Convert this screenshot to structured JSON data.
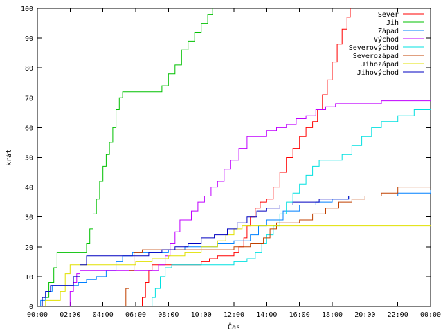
{
  "chart_data": {
    "type": "line",
    "xlabel": "Čas",
    "ylabel": "krát",
    "xlim": [
      0,
      24
    ],
    "ylim": [
      0,
      100
    ],
    "x_ticks": [
      {
        "value": 0,
        "label": "00:00"
      },
      {
        "value": 2,
        "label": "02:00"
      },
      {
        "value": 4,
        "label": "04:00"
      },
      {
        "value": 6,
        "label": "06:00"
      },
      {
        "value": 8,
        "label": "08:00"
      },
      {
        "value": 10,
        "label": "10:00"
      },
      {
        "value": 12,
        "label": "12:00"
      },
      {
        "value": 14,
        "label": "14:00"
      },
      {
        "value": 16,
        "label": "16:00"
      },
      {
        "value": 18,
        "label": "18:00"
      },
      {
        "value": 20,
        "label": "20:00"
      },
      {
        "value": 22,
        "label": "22:00"
      },
      {
        "value": 24,
        "label": "00:00"
      }
    ],
    "y_ticks": [
      0,
      10,
      20,
      30,
      40,
      50,
      60,
      70,
      80,
      90,
      100
    ],
    "grid": false,
    "legend_position": "top-right",
    "series": [
      {
        "name": "Sever",
        "color": "#ff0000",
        "points": [
          [
            6.2,
            0
          ],
          [
            6.4,
            3
          ],
          [
            6.6,
            8
          ],
          [
            6.8,
            12
          ],
          [
            7.0,
            14
          ],
          [
            7.5,
            14
          ],
          [
            8.0,
            14
          ],
          [
            8.5,
            14
          ],
          [
            9.0,
            14
          ],
          [
            9.5,
            14
          ],
          [
            10.0,
            15
          ],
          [
            10.5,
            16
          ],
          [
            11.0,
            17
          ],
          [
            11.5,
            17
          ],
          [
            12.0,
            18
          ],
          [
            12.3,
            20
          ],
          [
            12.6,
            23
          ],
          [
            12.8,
            27
          ],
          [
            13.0,
            30
          ],
          [
            13.3,
            33
          ],
          [
            13.6,
            35
          ],
          [
            14.0,
            36
          ],
          [
            14.4,
            40
          ],
          [
            14.8,
            45
          ],
          [
            15.2,
            50
          ],
          [
            15.6,
            53
          ],
          [
            16.0,
            57
          ],
          [
            16.4,
            60
          ],
          [
            16.8,
            62
          ],
          [
            17.1,
            66
          ],
          [
            17.4,
            71
          ],
          [
            17.7,
            76
          ],
          [
            18.0,
            82
          ],
          [
            18.3,
            88
          ],
          [
            18.6,
            93
          ],
          [
            18.9,
            97
          ],
          [
            19.1,
            100
          ]
        ]
      },
      {
        "name": "Jih",
        "color": "#00c000",
        "points": [
          [
            0.1,
            0
          ],
          [
            0.4,
            3
          ],
          [
            0.7,
            8
          ],
          [
            1.0,
            13
          ],
          [
            1.2,
            18
          ],
          [
            2.0,
            18
          ],
          [
            2.8,
            18
          ],
          [
            3.0,
            21
          ],
          [
            3.2,
            26
          ],
          [
            3.4,
            31
          ],
          [
            3.6,
            36
          ],
          [
            3.8,
            42
          ],
          [
            4.0,
            47
          ],
          [
            4.2,
            51
          ],
          [
            4.4,
            55
          ],
          [
            4.6,
            60
          ],
          [
            4.8,
            66
          ],
          [
            5.0,
            70
          ],
          [
            5.2,
            72
          ],
          [
            6.0,
            72
          ],
          [
            7.2,
            72
          ],
          [
            7.6,
            74
          ],
          [
            8.0,
            78
          ],
          [
            8.4,
            81
          ],
          [
            8.8,
            86
          ],
          [
            9.2,
            89
          ],
          [
            9.6,
            92
          ],
          [
            10.0,
            95
          ],
          [
            10.4,
            98
          ],
          [
            10.7,
            100
          ]
        ]
      },
      {
        "name": "Západ",
        "color": "#0080ff",
        "points": [
          [
            0.0,
            0
          ],
          [
            0.2,
            2
          ],
          [
            0.5,
            5
          ],
          [
            0.9,
            7
          ],
          [
            1.4,
            7
          ],
          [
            2.0,
            7
          ],
          [
            2.5,
            8
          ],
          [
            3.0,
            9
          ],
          [
            3.6,
            10
          ],
          [
            4.2,
            12
          ],
          [
            4.8,
            15
          ],
          [
            5.2,
            17
          ],
          [
            5.8,
            18
          ],
          [
            7.0,
            18
          ],
          [
            8.0,
            19
          ],
          [
            9.0,
            20
          ],
          [
            10.0,
            20
          ],
          [
            11.0,
            21
          ],
          [
            12.0,
            22
          ],
          [
            13.0,
            24
          ],
          [
            13.5,
            27
          ],
          [
            14.0,
            29
          ],
          [
            15.0,
            32
          ],
          [
            16.0,
            34
          ],
          [
            17.0,
            35
          ],
          [
            18.0,
            36
          ],
          [
            19.0,
            37
          ],
          [
            20.0,
            37
          ],
          [
            22.0,
            38
          ],
          [
            24.0,
            39
          ]
        ]
      },
      {
        "name": "Východ",
        "color": "#c000ff",
        "points": [
          [
            1.8,
            0
          ],
          [
            2.0,
            5
          ],
          [
            2.2,
            8
          ],
          [
            2.4,
            11
          ],
          [
            2.6,
            12
          ],
          [
            4.0,
            12
          ],
          [
            5.0,
            12
          ],
          [
            5.8,
            12
          ],
          [
            6.5,
            12
          ],
          [
            7.0,
            12
          ],
          [
            7.4,
            14
          ],
          [
            7.8,
            17
          ],
          [
            8.1,
            21
          ],
          [
            8.4,
            25
          ],
          [
            8.7,
            29
          ],
          [
            9.0,
            29
          ],
          [
            9.4,
            32
          ],
          [
            9.8,
            35
          ],
          [
            10.2,
            37
          ],
          [
            10.6,
            40
          ],
          [
            11.0,
            42
          ],
          [
            11.4,
            46
          ],
          [
            11.8,
            49
          ],
          [
            12.3,
            53
          ],
          [
            12.8,
            57
          ],
          [
            13.4,
            57
          ],
          [
            14.0,
            59
          ],
          [
            14.6,
            60
          ],
          [
            15.2,
            61
          ],
          [
            15.8,
            63
          ],
          [
            16.4,
            64
          ],
          [
            17.0,
            66
          ],
          [
            17.6,
            67
          ],
          [
            18.2,
            68
          ],
          [
            19.0,
            68
          ],
          [
            20.0,
            68
          ],
          [
            21.0,
            69
          ],
          [
            22.0,
            69
          ],
          [
            24.0,
            69
          ]
        ]
      },
      {
        "name": "Severovýchod",
        "color": "#00e0e0",
        "points": [
          [
            6.8,
            0
          ],
          [
            7.0,
            3
          ],
          [
            7.2,
            6
          ],
          [
            7.5,
            10
          ],
          [
            7.8,
            13
          ],
          [
            8.2,
            14
          ],
          [
            9.0,
            14
          ],
          [
            10.0,
            14
          ],
          [
            11.0,
            14
          ],
          [
            12.0,
            15
          ],
          [
            12.8,
            16
          ],
          [
            13.3,
            18
          ],
          [
            13.7,
            21
          ],
          [
            14.0,
            24
          ],
          [
            14.4,
            27
          ],
          [
            14.8,
            31
          ],
          [
            15.2,
            35
          ],
          [
            15.6,
            38
          ],
          [
            16.0,
            41
          ],
          [
            16.4,
            44
          ],
          [
            16.8,
            47
          ],
          [
            17.2,
            49
          ],
          [
            18.0,
            49
          ],
          [
            18.6,
            51
          ],
          [
            19.2,
            54
          ],
          [
            19.8,
            57
          ],
          [
            20.4,
            60
          ],
          [
            21.0,
            62
          ],
          [
            22.0,
            64
          ],
          [
            23.0,
            66
          ],
          [
            24.0,
            66
          ]
        ]
      },
      {
        "name": "Severozápad",
        "color": "#c04000",
        "points": [
          [
            5.2,
            0
          ],
          [
            5.4,
            6
          ],
          [
            5.6,
            12
          ],
          [
            5.9,
            18
          ],
          [
            6.4,
            19
          ],
          [
            7.0,
            19
          ],
          [
            8.0,
            19
          ],
          [
            9.0,
            19
          ],
          [
            10.0,
            19
          ],
          [
            11.0,
            19
          ],
          [
            12.0,
            20
          ],
          [
            13.0,
            21
          ],
          [
            13.8,
            23
          ],
          [
            14.2,
            26
          ],
          [
            14.6,
            28
          ],
          [
            15.4,
            28
          ],
          [
            16.0,
            29
          ],
          [
            16.8,
            31
          ],
          [
            17.6,
            33
          ],
          [
            18.4,
            35
          ],
          [
            19.2,
            36
          ],
          [
            20.0,
            37
          ],
          [
            21.0,
            38
          ],
          [
            22.0,
            40
          ],
          [
            24.0,
            40
          ]
        ]
      },
      {
        "name": "Jihozápad",
        "color": "#e0e000",
        "points": [
          [
            0.3,
            0
          ],
          [
            0.5,
            2
          ],
          [
            1.0,
            2
          ],
          [
            1.4,
            5
          ],
          [
            1.7,
            11
          ],
          [
            2.0,
            14
          ],
          [
            3.0,
            14
          ],
          [
            4.0,
            14
          ],
          [
            5.0,
            14
          ],
          [
            6.0,
            15
          ],
          [
            7.0,
            16
          ],
          [
            8.0,
            17
          ],
          [
            9.0,
            18
          ],
          [
            10.0,
            20
          ],
          [
            11.0,
            22
          ],
          [
            11.5,
            24
          ],
          [
            12.0,
            26
          ],
          [
            12.5,
            27
          ],
          [
            14.0,
            27
          ],
          [
            16.0,
            27
          ],
          [
            18.0,
            27
          ],
          [
            20.0,
            27
          ],
          [
            22.0,
            27
          ],
          [
            24.0,
            27
          ]
        ]
      },
      {
        "name": "Jihovýchod",
        "color": "#0000c0",
        "points": [
          [
            0.1,
            0
          ],
          [
            0.3,
            3
          ],
          [
            0.5,
            5
          ],
          [
            0.8,
            7
          ],
          [
            1.2,
            7
          ],
          [
            1.8,
            7
          ],
          [
            2.2,
            10
          ],
          [
            2.6,
            14
          ],
          [
            3.0,
            17
          ],
          [
            4.0,
            17
          ],
          [
            5.0,
            17
          ],
          [
            6.0,
            17
          ],
          [
            6.8,
            18
          ],
          [
            7.6,
            19
          ],
          [
            8.4,
            20
          ],
          [
            9.2,
            21
          ],
          [
            10.0,
            23
          ],
          [
            10.8,
            24
          ],
          [
            11.6,
            26
          ],
          [
            12.2,
            28
          ],
          [
            12.8,
            30
          ],
          [
            13.4,
            32
          ],
          [
            14.0,
            33
          ],
          [
            14.8,
            34
          ],
          [
            15.6,
            35
          ],
          [
            16.4,
            35
          ],
          [
            17.2,
            36
          ],
          [
            18.0,
            36
          ],
          [
            19.0,
            37
          ],
          [
            20.0,
            37
          ],
          [
            22.0,
            37
          ],
          [
            24.0,
            37
          ]
        ]
      }
    ]
  }
}
